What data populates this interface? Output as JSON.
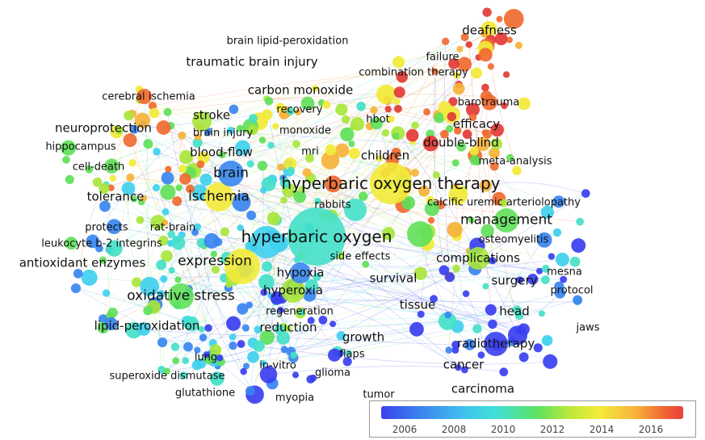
{
  "keywords": {
    "hyperbaric_oxygen_therapy": "hyperbaric oxygen therapy",
    "hyperbaric_oxygen": "hyperbaric oxygen",
    "oxidative_stress": "oxidative stress",
    "expression": "expression",
    "ischemia": "ischemia",
    "brain": "brain",
    "management": "management",
    "complications": "complications",
    "radiotherapy": "radiotherapy",
    "hyperoxia": "hyperoxia",
    "hypoxia": "hypoxia",
    "neuroprotection": "neuroprotection",
    "antioxidant_enzymes": "antioxidant enzymes",
    "traumatic_brain_injury": "traumatic brain injury",
    "carbon_monoxide": "carbon monoxide",
    "blood_flow": "blood-flow",
    "stroke": "stroke",
    "tolerance": "tolerance",
    "lipid_peroxidation": "lipid-peroxidation",
    "reduction": "reduction",
    "growth": "growth",
    "tissue": "tissue",
    "survival": "survival",
    "surgery": "surgery",
    "head": "head",
    "cancer": "cancer",
    "carcinoma": "carcinoma",
    "children": "children",
    "double_blind": "double-blind",
    "efficacy": "efficacy",
    "deafness": "deafness",
    "failure": "failure",
    "combination_therapy": "combination therapy",
    "barotrauma": "barotrauma",
    "meta_analysis": "meta-analysis",
    "calcific_uremic_arteriolopathy": "calcific uremic arteriolopathy",
    "osteomyelitis": "osteomyelitis",
    "mesna": "mesna",
    "protocol": "protocol",
    "jaws": "jaws",
    "brain_lipid_peroxidation": "brain lipid-peroxidation",
    "cerebral_ischemia": "cerebral ischemia",
    "recovery": "recovery",
    "hbot": "hbot",
    "monoxide": "monoxide",
    "brain_injury": "brain injury",
    "mri": "mri",
    "hippocampus": "hippocampus",
    "cell_death": "cell-death",
    "rabbits": "rabbits",
    "protects": "protects",
    "rat_brain": "rat-brain",
    "leukocyte_b2_integrins": "leukocyte b-2 integrins",
    "side_effects": "side effects",
    "regeneration": "regeneration",
    "lung": "lung",
    "in_vitro": "in-vitro",
    "flaps": "flaps",
    "glioma": "glioma",
    "superoxide_dismutase": "superoxide dismutase",
    "glutathione": "glutathione",
    "myopia": "myopia",
    "tumor": "tumor"
  },
  "legend": {
    "ticks": [
      "2006",
      "2008",
      "2010",
      "2012",
      "2014",
      "2016"
    ]
  },
  "colors": {
    "c2006": "#3a3ff0",
    "c2008": "#3a86f0",
    "c2009": "#3fd0ee",
    "c2010": "#44e0c8",
    "c2011": "#5fe05a",
    "c2012": "#a8e63c",
    "c2013": "#f2ea38",
    "c2014": "#f6b23a",
    "c2015": "#f06a30",
    "c2016": "#e33a36"
  }
}
